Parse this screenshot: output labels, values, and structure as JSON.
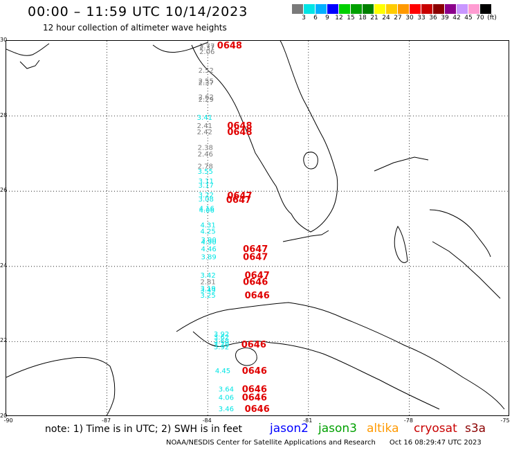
{
  "header": {
    "title": "00:00 – 11:59 UTC 10/14/2023",
    "subtitle": "12 hour collection of altimeter wave heights"
  },
  "colorbar": {
    "colors": [
      "#7a7a7a",
      "#00e5e5",
      "#00b0ff",
      "#0000ff",
      "#00d000",
      "#00a000",
      "#008000",
      "#ffff00",
      "#ffcc00",
      "#ff9900",
      "#ff0000",
      "#c80000",
      "#8b0000",
      "#8b008b",
      "#c896ff",
      "#ff9cd2",
      "#000000"
    ],
    "labels": [
      "3",
      "6",
      "9",
      "12",
      "15",
      "18",
      "21",
      "24",
      "27",
      "30",
      "33",
      "36",
      "39",
      "42",
      "45",
      "70",
      "(ft)"
    ]
  },
  "map": {
    "lat_labels": [
      "30",
      "28",
      "26",
      "24",
      "22",
      "20"
    ],
    "lon_labels": [
      "-90",
      "-87",
      "-84",
      "-81",
      "-78",
      "-75"
    ]
  },
  "observations": [
    {
      "lat": 29.8,
      "lon": -84.25,
      "swh": "2.77",
      "color": "#7a7a7a"
    },
    {
      "lat": 29.75,
      "lon": -84.25,
      "swh": "2.37",
      "color": "#7a7a7a"
    },
    {
      "lat": 29.65,
      "lon": -84.25,
      "swh": "2.06",
      "color": "#7a7a7a"
    },
    {
      "lat": 29.15,
      "lon": -84.28,
      "swh": "2.52",
      "color": "#7a7a7a"
    },
    {
      "lat": 28.87,
      "lon": -84.28,
      "swh": "2.55",
      "color": "#7a7a7a"
    },
    {
      "lat": 28.82,
      "lon": -84.28,
      "swh": "2.37",
      "color": "#7a7a7a"
    },
    {
      "lat": 28.44,
      "lon": -84.28,
      "swh": "2.62",
      "color": "#7a7a7a"
    },
    {
      "lat": 28.38,
      "lon": -84.28,
      "swh": "2.29",
      "color": "#7a7a7a"
    },
    {
      "lat": 27.9,
      "lon": -84.32,
      "swh": "3.41",
      "color": "#00e5e5"
    },
    {
      "lat": 27.68,
      "lon": -84.32,
      "swh": "2.41",
      "color": "#7a7a7a"
    },
    {
      "lat": 27.51,
      "lon": -84.32,
      "swh": "2.42",
      "color": "#7a7a7a"
    },
    {
      "lat": 27.1,
      "lon": -84.3,
      "swh": "2.38",
      "color": "#7a7a7a"
    },
    {
      "lat": 26.92,
      "lon": -84.3,
      "swh": "2.46",
      "color": "#7a7a7a"
    },
    {
      "lat": 26.6,
      "lon": -84.3,
      "swh": "2.78",
      "color": "#7a7a7a"
    },
    {
      "lat": 26.46,
      "lon": -84.3,
      "swh": "3.55",
      "color": "#00e5e5"
    },
    {
      "lat": 26.21,
      "lon": -84.28,
      "swh": "3.11",
      "color": "#00e5e5"
    },
    {
      "lat": 26.1,
      "lon": -84.28,
      "swh": "3.17",
      "color": "#00e5e5"
    },
    {
      "lat": 25.84,
      "lon": -84.28,
      "swh": "3.22",
      "color": "#00e5e5"
    },
    {
      "lat": 25.73,
      "lon": -84.28,
      "swh": "3.08",
      "color": "#00e5e5"
    },
    {
      "lat": 25.48,
      "lon": -84.26,
      "swh": "4.16",
      "color": "#00e5e5"
    },
    {
      "lat": 25.43,
      "lon": -84.26,
      "swh": "4.06",
      "color": "#00e5e5"
    },
    {
      "lat": 25.04,
      "lon": -84.22,
      "swh": "4.31",
      "color": "#00e5e5"
    },
    {
      "lat": 24.87,
      "lon": -84.22,
      "swh": "4.25",
      "color": "#00e5e5"
    },
    {
      "lat": 24.64,
      "lon": -84.2,
      "swh": "3.90",
      "color": "#00e5e5"
    },
    {
      "lat": 24.59,
      "lon": -84.2,
      "swh": "4.90",
      "color": "#00e5e5"
    },
    {
      "lat": 24.4,
      "lon": -84.2,
      "swh": "4.46",
      "color": "#00e5e5"
    },
    {
      "lat": 24.19,
      "lon": -84.2,
      "swh": "3.89",
      "color": "#00e5e5"
    },
    {
      "lat": 23.7,
      "lon": -84.22,
      "swh": "3.42",
      "color": "#00e5e5"
    },
    {
      "lat": 23.53,
      "lon": -84.22,
      "swh": "2.81",
      "color": "#7a7a7a"
    },
    {
      "lat": 23.35,
      "lon": -84.22,
      "swh": "3.19",
      "color": "#00e5e5"
    },
    {
      "lat": 23.31,
      "lon": -84.22,
      "swh": "3.49",
      "color": "#00e5e5"
    },
    {
      "lat": 23.17,
      "lon": -84.22,
      "swh": "3.25",
      "color": "#00e5e5"
    },
    {
      "lat": 22.14,
      "lon": -83.82,
      "swh": "3.92",
      "color": "#00e5e5"
    },
    {
      "lat": 22.05,
      "lon": -83.82,
      "swh": "3.62",
      "color": "#00e5e5"
    },
    {
      "lat": 21.95,
      "lon": -83.82,
      "swh": "3.68",
      "color": "#00e5e5"
    },
    {
      "lat": 21.86,
      "lon": -83.82,
      "swh": "3.70",
      "color": "#00e5e5"
    },
    {
      "lat": 21.8,
      "lon": -83.82,
      "swh": "3.92",
      "color": "#00e5e5"
    },
    {
      "lat": 21.16,
      "lon": -83.78,
      "swh": "4.45",
      "color": "#00e5e5"
    },
    {
      "lat": 20.67,
      "lon": -83.68,
      "swh": "3.64",
      "color": "#00e5e5"
    },
    {
      "lat": 20.45,
      "lon": -83.68,
      "swh": "4.06",
      "color": "#00e5e5"
    },
    {
      "lat": 20.15,
      "lon": -83.68,
      "swh": "3.46",
      "color": "#00e5e5"
    }
  ],
  "pass_times": [
    {
      "lat": 29.82,
      "lon": -83.72,
      "text": "0648",
      "color": "#e00000"
    },
    {
      "lat": 27.68,
      "lon": -83.42,
      "text": "0648",
      "color": "#e00000"
    },
    {
      "lat": 27.51,
      "lon": -83.42,
      "text": "0648",
      "color": "#e00000"
    },
    {
      "lat": 25.82,
      "lon": -83.42,
      "text": "0647",
      "color": "#e00000"
    },
    {
      "lat": 25.71,
      "lon": -83.45,
      "text": "0647",
      "color": "#e00000"
    },
    {
      "lat": 24.4,
      "lon": -82.95,
      "text": "0647",
      "color": "#e00000"
    },
    {
      "lat": 24.19,
      "lon": -82.95,
      "text": "0647",
      "color": "#e00000"
    },
    {
      "lat": 23.7,
      "lon": -82.9,
      "text": "0647",
      "color": "#e00000"
    },
    {
      "lat": 23.53,
      "lon": -82.95,
      "text": "0646",
      "color": "#e00000"
    },
    {
      "lat": 23.17,
      "lon": -82.9,
      "text": "0646",
      "color": "#e00000"
    },
    {
      "lat": 21.86,
      "lon": -83.0,
      "text": "0646",
      "color": "#e00000"
    },
    {
      "lat": 21.16,
      "lon": -82.98,
      "text": "0646",
      "color": "#e00000"
    },
    {
      "lat": 20.67,
      "lon": -82.98,
      "text": "0646",
      "color": "#e00000"
    },
    {
      "lat": 20.45,
      "lon": -82.98,
      "text": "0646",
      "color": "#e00000"
    },
    {
      "lat": 20.15,
      "lon": -82.9,
      "text": "0646",
      "color": "#e00000"
    }
  ],
  "footer": {
    "note": "note: 1) Time is in UTC; 2) SWH is in feet",
    "agency": "NOAA/NESDIS Center for Satellite Applications and Research",
    "timestamp": "Oct 16 08:29:47 UTC 2023"
  },
  "satellites": [
    {
      "name": "jason2",
      "color": "#0000ff"
    },
    {
      "name": "jason3",
      "color": "#00a000"
    },
    {
      "name": "altika",
      "color": "#ff9900"
    },
    {
      "name": "cryosat",
      "color": "#c80000"
    },
    {
      "name": "s3a",
      "color": "#8b0000"
    }
  ]
}
